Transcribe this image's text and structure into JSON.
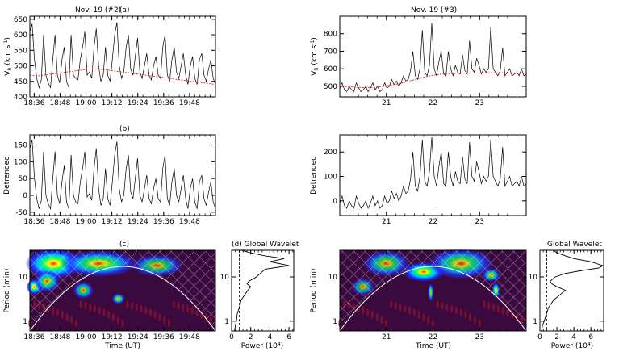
{
  "panels": [
    {
      "id": "vr1",
      "heading": "Nov. 19 (#2)",
      "sublabel": "(a)",
      "ylabel": "V_R (km s^-1)",
      "ylabel_main": "V",
      "ylabel_sub": "R",
      "ylabel_unit": " (km s",
      "ylabel_exp": "-1",
      "ylabel_close": ")",
      "xlabel": ""
    },
    {
      "id": "vr2",
      "heading": "Nov. 19 (#3)",
      "ylabel": "V_R (km s^-1)",
      "ylabel_main": "V",
      "ylabel_sub": "R",
      "ylabel_unit": " (km s",
      "ylabel_exp": "-1",
      "ylabel_close": ")",
      "xlabel": ""
    },
    {
      "id": "dt1",
      "sublabel": "(b)",
      "ylabel": "Detrended"
    },
    {
      "id": "dt2",
      "ylabel": "Detrended"
    },
    {
      "id": "wv1",
      "sublabel": "(c)",
      "ylabel": "Period (min)",
      "xlabel": "Time (UT)"
    },
    {
      "id": "gw1",
      "title": "(d) Global Wavelet",
      "xlabel": "Power (10^4)",
      "xlabel_main": "Power (10",
      "xlabel_exp": "4",
      "xlabel_close": ")"
    },
    {
      "id": "wv2",
      "ylabel": "Period (min)",
      "xlabel": "Time (UT)"
    },
    {
      "id": "gw2",
      "title": "Global Wavelet",
      "xlabel": "Power (10^4)",
      "xlabel_main": "Power (10",
      "xlabel_exp": "4",
      "xlabel_close": ")"
    }
  ],
  "chart_data": [
    {
      "id": "vr1",
      "type": "line",
      "title": "Nov. 19 (#2)",
      "xlabel": "",
      "ylabel": "V_R (km s^-1)",
      "xlim": [
        18.5667,
        20.0
      ],
      "ylim": [
        400,
        660
      ],
      "x_ticks": [
        18.6,
        18.8,
        19.0,
        19.2,
        19.4,
        19.6,
        19.8
      ],
      "x_tick_labels": [
        "18:36",
        "18:48",
        "19:00",
        "19:12",
        "19:24",
        "19:36",
        "19:48"
      ],
      "y_ticks": [
        400,
        450,
        500,
        550,
        600,
        650
      ],
      "y_tick_labels": [
        "400",
        "450",
        "500",
        "550",
        "600",
        "650"
      ],
      "series": [
        {
          "name": "V_R",
          "color": "#000000",
          "values": [
            610,
            635,
            520,
            460,
            430,
            455,
            600,
            470,
            445,
            430,
            520,
            600,
            470,
            445,
            520,
            560,
            450,
            430,
            600,
            470,
            460,
            455,
            520,
            560,
            610,
            470,
            480,
            460,
            560,
            620,
            500,
            450,
            470,
            560,
            470,
            450,
            520,
            600,
            640,
            500,
            460,
            480,
            560,
            600,
            490,
            470,
            530,
            590,
            480,
            460,
            500,
            540,
            470,
            455,
            500,
            530,
            470,
            460,
            560,
            600,
            470,
            450,
            520,
            560,
            480,
            460,
            500,
            540,
            470,
            440,
            500,
            530,
            460,
            440,
            520,
            540,
            470,
            450,
            490,
            520,
            460,
            440
          ]
        },
        {
          "name": "trend",
          "color": "#dd2222",
          "values": [
            470,
            468,
            468,
            470,
            472,
            474,
            476,
            478,
            480,
            482,
            484,
            486,
            488,
            490,
            490,
            490,
            488,
            486,
            484,
            482,
            480,
            478,
            476,
            474,
            472,
            470,
            468,
            466,
            464,
            462,
            460,
            458,
            456,
            454,
            452,
            450,
            448,
            446,
            444,
            442,
            440
          ]
        }
      ]
    },
    {
      "id": "vr2",
      "type": "line",
      "title": "Nov. 19 (#3)",
      "xlabel": "",
      "ylabel": "V_R (km s^-1)",
      "xlim": [
        20.0,
        24.0
      ],
      "ylim": [
        440,
        900
      ],
      "x_ticks": [
        21,
        22,
        23
      ],
      "x_tick_labels": [
        "21",
        "22",
        "23"
      ],
      "y_ticks": [
        500,
        600,
        700,
        800
      ],
      "y_tick_labels": [
        "500",
        "600",
        "700",
        "800"
      ],
      "series": [
        {
          "name": "V_R",
          "color": "#000000",
          "values": [
            490,
            520,
            480,
            470,
            500,
            480,
            470,
            520,
            490,
            470,
            480,
            500,
            470,
            490,
            520,
            480,
            500,
            470,
            480,
            520,
            490,
            500,
            540,
            510,
            530,
            500,
            520,
            560,
            530,
            540,
            590,
            700,
            560,
            540,
            600,
            820,
            580,
            560,
            620,
            860,
            600,
            560,
            640,
            700,
            570,
            560,
            700,
            600,
            560,
            620,
            580,
            570,
            680,
            590,
            570,
            760,
            600,
            580,
            660,
            620,
            570,
            600,
            580,
            600,
            840,
            600,
            580,
            560,
            590,
            720,
            560,
            580,
            600,
            560,
            570,
            580,
            560,
            600,
            560,
            570
          ]
        },
        {
          "name": "trend",
          "color": "#dd2222",
          "values": [
            505,
            500,
            496,
            494,
            493,
            494,
            497,
            501,
            507,
            514,
            522,
            532,
            542,
            552,
            560,
            566,
            570,
            572,
            574,
            575,
            575,
            576,
            576,
            577,
            577,
            577,
            576,
            576,
            575,
            575
          ]
        }
      ]
    },
    {
      "id": "dt1",
      "type": "line",
      "title": "(b)",
      "xlabel": "",
      "ylabel": "Detrended",
      "xlim": [
        18.5667,
        20.0
      ],
      "ylim": [
        -60,
        180
      ],
      "x_ticks": [
        18.6,
        18.8,
        19.0,
        19.2,
        19.4,
        19.6,
        19.8
      ],
      "x_tick_labels": [
        "18:36",
        "18:48",
        "19:00",
        "19:12",
        "19:24",
        "19:36",
        "19:48"
      ],
      "y_ticks": [
        -50,
        0,
        50,
        100,
        150
      ],
      "y_tick_labels": [
        "-50",
        "0",
        "50",
        "100",
        "150"
      ],
      "series": [
        {
          "name": "detrended",
          "color": "#000000",
          "values": [
            140,
            165,
            50,
            -10,
            -40,
            -15,
            130,
            0,
            -25,
            -40,
            50,
            130,
            0,
            -25,
            40,
            90,
            -20,
            -40,
            120,
            0,
            -20,
            -25,
            40,
            80,
            130,
            -5,
            5,
            -15,
            80,
            140,
            20,
            -30,
            -10,
            80,
            -10,
            -30,
            40,
            120,
            160,
            20,
            -20,
            0,
            80,
            120,
            10,
            -10,
            50,
            110,
            0,
            -20,
            20,
            60,
            -10,
            -25,
            20,
            50,
            -10,
            -20,
            80,
            120,
            -10,
            -30,
            40,
            80,
            0,
            -20,
            20,
            60,
            -10,
            -40,
            20,
            50,
            -20,
            -40,
            40,
            60,
            -10,
            -30,
            10,
            40,
            -20,
            -40
          ]
        }
      ]
    },
    {
      "id": "dt2",
      "type": "line",
      "title": "",
      "xlabel": "",
      "ylabel": "Detrended",
      "xlim": [
        20.0,
        24.0
      ],
      "ylim": [
        -60,
        270
      ],
      "x_ticks": [
        21,
        22,
        23
      ],
      "x_tick_labels": [
        "21",
        "22",
        "23"
      ],
      "y_ticks": [
        0,
        100,
        200
      ],
      "y_tick_labels": [
        "0",
        "100",
        "200"
      ],
      "series": [
        {
          "name": "detrended",
          "color": "#000000",
          "values": [
            -10,
            20,
            -20,
            -30,
            0,
            -20,
            -30,
            20,
            -10,
            -30,
            -20,
            0,
            -30,
            -10,
            20,
            -20,
            0,
            -30,
            -20,
            20,
            -10,
            0,
            40,
            10,
            30,
            0,
            20,
            60,
            30,
            40,
            90,
            200,
            60,
            40,
            100,
            250,
            80,
            60,
            120,
            260,
            100,
            60,
            140,
            200,
            70,
            60,
            200,
            100,
            60,
            120,
            80,
            70,
            180,
            90,
            70,
            240,
            100,
            80,
            160,
            120,
            70,
            100,
            80,
            100,
            250,
            100,
            80,
            60,
            90,
            220,
            60,
            80,
            100,
            60,
            70,
            80,
            60,
            100,
            60,
            70
          ]
        }
      ]
    },
    {
      "id": "wv1",
      "type": "heatmap",
      "title": "(c)",
      "xlabel": "Time (UT)",
      "ylabel": "Period (min)",
      "xlim": [
        18.5667,
        20.0
      ],
      "ylim": [
        0.6,
        40
      ],
      "x_ticks": [
        18.6,
        18.8,
        19.0,
        19.2,
        19.4,
        19.6,
        19.8
      ],
      "x_tick_labels": [
        "18:36",
        "18:48",
        "19:00",
        "19:12",
        "19:24",
        "19:36",
        "19:48"
      ],
      "y_ticks": [
        1,
        10
      ],
      "y_tick_labels": [
        "1",
        "10"
      ],
      "blobs": [
        {
          "t": 18.75,
          "p": 20,
          "w": 0.22,
          "h": 0.35,
          "v": 1.0
        },
        {
          "t": 18.6,
          "p": 6,
          "w": 0.06,
          "h": 0.18,
          "v": 1.0
        },
        {
          "t": 18.7,
          "p": 8,
          "w": 0.1,
          "h": 0.25,
          "v": 0.6
        },
        {
          "t": 19.1,
          "p": 20,
          "w": 0.3,
          "h": 0.3,
          "v": 0.7
        },
        {
          "t": 19.25,
          "p": 3.2,
          "w": 0.05,
          "h": 0.12,
          "v": 0.75
        },
        {
          "t": 18.98,
          "p": 5,
          "w": 0.08,
          "h": 0.2,
          "v": 0.55
        },
        {
          "t": 19.55,
          "p": 18,
          "w": 0.2,
          "h": 0.25,
          "v": 0.4
        }
      ]
    },
    {
      "id": "gw1",
      "type": "line",
      "title": "(d) Global Wavelet",
      "xlabel": "Power (10^4)",
      "ylabel": "",
      "xlim": [
        0,
        6.5
      ],
      "ylim": [
        0.6,
        40
      ],
      "x_ticks": [
        0,
        2,
        4,
        6
      ],
      "x_tick_labels": [
        "0",
        "2",
        "4",
        "6"
      ],
      "y_ticks": [
        1,
        10
      ],
      "y_tick_labels": [
        "",
        ""
      ],
      "significance": 0.8,
      "series": [
        {
          "name": "global",
          "color": "#000000",
          "periods": [
            0.6,
            0.8,
            1,
            1.5,
            2,
            3,
            4,
            5,
            6,
            7,
            8,
            10,
            12,
            15,
            18,
            22,
            26,
            30,
            35,
            40
          ],
          "values": [
            0.3,
            0.4,
            0.5,
            0.6,
            0.8,
            1.0,
            1.4,
            1.7,
            2.0,
            1.6,
            1.8,
            2.6,
            3.0,
            3.5,
            6.0,
            4.0,
            5.5,
            3.5,
            2.0,
            1.0
          ]
        }
      ]
    },
    {
      "id": "wv2",
      "type": "heatmap",
      "title": "",
      "xlabel": "Time (UT)",
      "ylabel": "Period (min)",
      "xlim": [
        20.0,
        24.0
      ],
      "ylim": [
        0.6,
        40
      ],
      "x_ticks": [
        21,
        22,
        23
      ],
      "x_tick_labels": [
        "21",
        "22",
        "23"
      ],
      "y_ticks": [
        1,
        10
      ],
      "y_tick_labels": [
        "1",
        "10"
      ],
      "blobs": [
        {
          "t": 21.8,
          "p": 13,
          "w": 0.45,
          "h": 0.22,
          "v": 1.0
        },
        {
          "t": 22.6,
          "p": 20,
          "w": 0.7,
          "h": 0.35,
          "v": 0.55
        },
        {
          "t": 21.0,
          "p": 20,
          "w": 0.5,
          "h": 0.3,
          "v": 0.45
        },
        {
          "t": 23.35,
          "p": 5,
          "w": 0.08,
          "h": 0.18,
          "v": 0.95
        },
        {
          "t": 23.25,
          "p": 11,
          "w": 0.2,
          "h": 0.15,
          "v": 0.6
        },
        {
          "t": 21.95,
          "p": 4.5,
          "w": 0.06,
          "h": 0.2,
          "v": 0.7
        },
        {
          "t": 20.5,
          "p": 6,
          "w": 0.25,
          "h": 0.2,
          "v": 0.35
        }
      ]
    },
    {
      "id": "gw2",
      "type": "line",
      "title": "Global Wavelet",
      "xlabel": "Power (10^4)",
      "ylabel": "",
      "xlim": [
        0,
        7.5
      ],
      "ylim": [
        0.6,
        40
      ],
      "x_ticks": [
        0,
        2,
        4,
        6
      ],
      "x_tick_labels": [
        "0",
        "2",
        "4",
        "6"
      ],
      "y_ticks": [
        1,
        10
      ],
      "y_tick_labels": [
        "",
        ""
      ],
      "significance": 0.8,
      "series": [
        {
          "name": "global",
          "color": "#000000",
          "periods": [
            0.6,
            0.8,
            1,
            1.5,
            2,
            3,
            4,
            5,
            6,
            7,
            8,
            10,
            12,
            14,
            16,
            18,
            22,
            26,
            30,
            35,
            40
          ],
          "values": [
            0.2,
            0.3,
            0.5,
            0.8,
            1.0,
            1.6,
            2.4,
            3.0,
            2.0,
            1.4,
            1.2,
            1.8,
            3.0,
            5.0,
            7.0,
            7.4,
            6.0,
            4.0,
            3.0,
            2.0,
            1.6
          ]
        }
      ]
    }
  ]
}
